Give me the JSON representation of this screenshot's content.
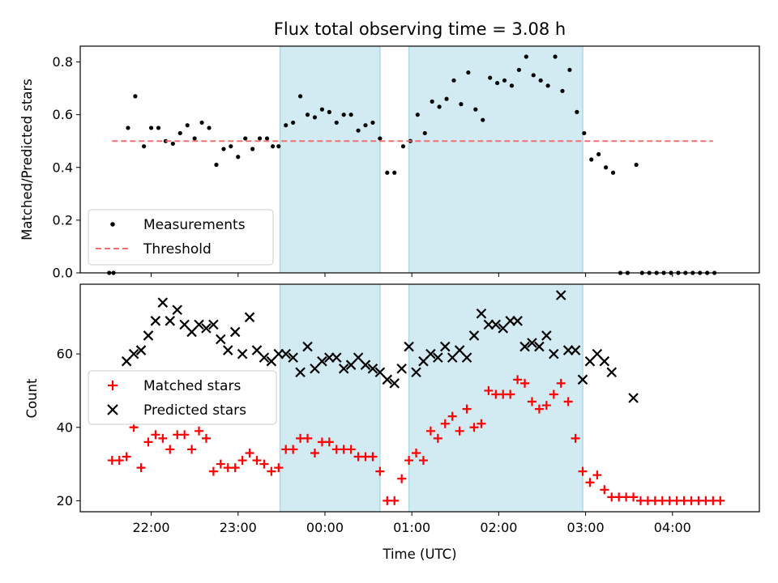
{
  "chart_data": [
    {
      "type": "scatter",
      "title": "Flux total observing time = 3.08 h",
      "xlabel": "",
      "ylabel": "Matched/Predicted stars",
      "ylim": [
        0,
        0.86
      ],
      "yticks": [
        "0.0",
        "0.2",
        "0.4",
        "0.6",
        "0.8"
      ],
      "ytick_values": [
        0,
        0.2,
        0.4,
        0.6,
        0.8
      ],
      "xlim": [
        "21:11",
        "05:00"
      ],
      "grid": false,
      "legend_position": "lower-left",
      "shaded_intervals": [
        [
          "23:29",
          "00:38"
        ],
        [
          "00:58",
          "02:58"
        ]
      ],
      "shade_color": "#add8e6",
      "series": [
        {
          "name": "Measurements",
          "marker": "dot",
          "color": "#000000",
          "points": [
            [
              "21:31",
              0.0
            ],
            [
              "21:34",
              0.0
            ],
            [
              "21:44",
              0.55
            ],
            [
              "21:49",
              0.67
            ],
            [
              "21:55",
              0.48
            ],
            [
              "22:00",
              0.55
            ],
            [
              "22:05",
              0.55
            ],
            [
              "22:10",
              0.5
            ],
            [
              "22:15",
              0.49
            ],
            [
              "22:20",
              0.53
            ],
            [
              "22:25",
              0.56
            ],
            [
              "22:30",
              0.51
            ],
            [
              "22:35",
              0.57
            ],
            [
              "22:40",
              0.55
            ],
            [
              "22:45",
              0.41
            ],
            [
              "22:50",
              0.47
            ],
            [
              "22:55",
              0.48
            ],
            [
              "23:00",
              0.44
            ],
            [
              "23:05",
              0.51
            ],
            [
              "23:10",
              0.47
            ],
            [
              "23:15",
              0.51
            ],
            [
              "23:20",
              0.51
            ],
            [
              "23:24",
              0.48
            ],
            [
              "23:28",
              0.48
            ],
            [
              "23:33",
              0.56
            ],
            [
              "23:38",
              0.57
            ],
            [
              "23:43",
              0.67
            ],
            [
              "23:48",
              0.6
            ],
            [
              "23:53",
              0.59
            ],
            [
              "23:58",
              0.62
            ],
            [
              "00:03",
              0.61
            ],
            [
              "00:08",
              0.57
            ],
            [
              "00:13",
              0.6
            ],
            [
              "00:18",
              0.6
            ],
            [
              "00:23",
              0.54
            ],
            [
              "00:28",
              0.56
            ],
            [
              "00:33",
              0.57
            ],
            [
              "00:38",
              0.51
            ],
            [
              "00:43",
              0.38
            ],
            [
              "00:48",
              0.38
            ],
            [
              "00:54",
              0.48
            ],
            [
              "00:59",
              0.5
            ],
            [
              "01:04",
              0.6
            ],
            [
              "01:09",
              0.53
            ],
            [
              "01:14",
              0.65
            ],
            [
              "01:19",
              0.63
            ],
            [
              "01:24",
              0.66
            ],
            [
              "01:29",
              0.73
            ],
            [
              "01:34",
              0.64
            ],
            [
              "01:39",
              0.76
            ],
            [
              "01:44",
              0.62
            ],
            [
              "01:49",
              0.58
            ],
            [
              "01:54",
              0.74
            ],
            [
              "01:59",
              0.72
            ],
            [
              "02:04",
              0.73
            ],
            [
              "02:09",
              0.71
            ],
            [
              "02:14",
              0.77
            ],
            [
              "02:19",
              0.82
            ],
            [
              "02:24",
              0.75
            ],
            [
              "02:29",
              0.73
            ],
            [
              "02:34",
              0.71
            ],
            [
              "02:39",
              0.82
            ],
            [
              "02:44",
              0.69
            ],
            [
              "02:49",
              0.77
            ],
            [
              "02:54",
              0.61
            ],
            [
              "02:59",
              0.53
            ],
            [
              "03:04",
              0.43
            ],
            [
              "03:09",
              0.45
            ],
            [
              "03:14",
              0.4
            ],
            [
              "03:19",
              0.38
            ],
            [
              "03:24",
              0.0
            ],
            [
              "03:29",
              0.0
            ],
            [
              "03:35",
              0.41
            ],
            [
              "03:39",
              0.0
            ],
            [
              "03:44",
              0.0
            ],
            [
              "03:49",
              0.0
            ],
            [
              "03:54",
              0.0
            ],
            [
              "03:59",
              0.0
            ],
            [
              "04:04",
              0.0
            ],
            [
              "04:09",
              0.0
            ],
            [
              "04:14",
              0.0
            ],
            [
              "04:19",
              0.0
            ],
            [
              "04:24",
              0.0
            ],
            [
              "04:29",
              0.0
            ]
          ]
        },
        {
          "name": "Threshold",
          "marker": "dashed-line",
          "color": "#f07070",
          "points": [
            [
              "21:33",
              0.5
            ],
            [
              "04:28",
              0.5
            ]
          ]
        }
      ]
    },
    {
      "type": "scatter",
      "title": "",
      "xlabel": "Time (UTC)",
      "ylabel": "Count",
      "ylim": [
        17,
        79
      ],
      "yticks": [
        "20",
        "40",
        "60"
      ],
      "ytick_values": [
        20,
        40,
        60
      ],
      "xticks": [
        "22:00",
        "23:00",
        "00:00",
        "01:00",
        "02:00",
        "03:00",
        "04:00"
      ],
      "xlim": [
        "21:11",
        "05:00"
      ],
      "grid": false,
      "legend_position": "center-left",
      "shaded_intervals": [
        [
          "23:29",
          "00:38"
        ],
        [
          "00:58",
          "02:58"
        ]
      ],
      "shade_color": "#add8e6",
      "series": [
        {
          "name": "Matched stars",
          "marker": "plus",
          "color": "#ff0000",
          "points": [
            [
              "21:33",
              31
            ],
            [
              "21:38",
              31
            ],
            [
              "21:43",
              32
            ],
            [
              "21:48",
              40
            ],
            [
              "21:53",
              29
            ],
            [
              "21:58",
              36
            ],
            [
              "22:03",
              38
            ],
            [
              "22:08",
              37
            ],
            [
              "22:13",
              34
            ],
            [
              "22:18",
              38
            ],
            [
              "22:23",
              38
            ],
            [
              "22:28",
              34
            ],
            [
              "22:33",
              39
            ],
            [
              "22:38",
              37
            ],
            [
              "22:43",
              28
            ],
            [
              "22:48",
              30
            ],
            [
              "22:53",
              29
            ],
            [
              "22:58",
              29
            ],
            [
              "23:03",
              31
            ],
            [
              "23:08",
              33
            ],
            [
              "23:13",
              31
            ],
            [
              "23:18",
              30
            ],
            [
              "23:23",
              28
            ],
            [
              "23:28",
              29
            ],
            [
              "23:33",
              34
            ],
            [
              "23:38",
              34
            ],
            [
              "23:43",
              37
            ],
            [
              "23:48",
              37
            ],
            [
              "23:53",
              33
            ],
            [
              "23:58",
              36
            ],
            [
              "00:03",
              36
            ],
            [
              "00:08",
              34
            ],
            [
              "00:13",
              34
            ],
            [
              "00:18",
              34
            ],
            [
              "00:23",
              32
            ],
            [
              "00:28",
              32
            ],
            [
              "00:33",
              32
            ],
            [
              "00:38",
              28
            ],
            [
              "00:43",
              20
            ],
            [
              "00:48",
              20
            ],
            [
              "00:53",
              26
            ],
            [
              "00:58",
              31
            ],
            [
              "01:03",
              33
            ],
            [
              "01:08",
              31
            ],
            [
              "01:13",
              39
            ],
            [
              "01:18",
              37
            ],
            [
              "01:23",
              41
            ],
            [
              "01:28",
              43
            ],
            [
              "01:33",
              39
            ],
            [
              "01:38",
              45
            ],
            [
              "01:43",
              40
            ],
            [
              "01:48",
              41
            ],
            [
              "01:53",
              50
            ],
            [
              "01:58",
              49
            ],
            [
              "02:03",
              49
            ],
            [
              "02:08",
              49
            ],
            [
              "02:13",
              53
            ],
            [
              "02:18",
              52
            ],
            [
              "02:23",
              47
            ],
            [
              "02:28",
              45
            ],
            [
              "02:33",
              46
            ],
            [
              "02:38",
              49
            ],
            [
              "02:43",
              52
            ],
            [
              "02:48",
              47
            ],
            [
              "02:53",
              37
            ],
            [
              "02:58",
              28
            ],
            [
              "03:03",
              25
            ],
            [
              "03:08",
              27
            ],
            [
              "03:13",
              23
            ],
            [
              "03:18",
              21
            ],
            [
              "03:23",
              21
            ],
            [
              "03:28",
              21
            ],
            [
              "03:33",
              21
            ],
            [
              "03:38",
              20
            ],
            [
              "03:43",
              20
            ],
            [
              "03:48",
              20
            ],
            [
              "03:53",
              20
            ],
            [
              "03:58",
              20
            ],
            [
              "04:03",
              20
            ],
            [
              "04:08",
              20
            ],
            [
              "04:13",
              20
            ],
            [
              "04:18",
              20
            ],
            [
              "04:23",
              20
            ],
            [
              "04:28",
              20
            ],
            [
              "04:33",
              20
            ]
          ]
        },
        {
          "name": "Predicted stars",
          "marker": "x",
          "color": "#000000",
          "points": [
            [
              "21:43",
              58
            ],
            [
              "21:48",
              60
            ],
            [
              "21:53",
              61
            ],
            [
              "21:58",
              65
            ],
            [
              "22:03",
              69
            ],
            [
              "22:08",
              74
            ],
            [
              "22:13",
              69
            ],
            [
              "22:18",
              72
            ],
            [
              "22:23",
              68
            ],
            [
              "22:28",
              66
            ],
            [
              "22:33",
              68
            ],
            [
              "22:38",
              67
            ],
            [
              "22:43",
              68
            ],
            [
              "22:48",
              64
            ],
            [
              "22:53",
              61
            ],
            [
              "22:58",
              66
            ],
            [
              "23:03",
              60
            ],
            [
              "23:08",
              70
            ],
            [
              "23:13",
              61
            ],
            [
              "23:18",
              59
            ],
            [
              "23:23",
              58
            ],
            [
              "23:28",
              60
            ],
            [
              "23:33",
              60
            ],
            [
              "23:38",
              59
            ],
            [
              "23:43",
              55
            ],
            [
              "23:48",
              62
            ],
            [
              "23:53",
              56
            ],
            [
              "23:58",
              58
            ],
            [
              "00:03",
              59
            ],
            [
              "00:08",
              59
            ],
            [
              "00:13",
              56
            ],
            [
              "00:18",
              57
            ],
            [
              "00:23",
              59
            ],
            [
              "00:28",
              57
            ],
            [
              "00:33",
              56
            ],
            [
              "00:38",
              55
            ],
            [
              "00:43",
              53
            ],
            [
              "00:48",
              52
            ],
            [
              "00:53",
              56
            ],
            [
              "00:58",
              62
            ],
            [
              "01:03",
              55
            ],
            [
              "01:08",
              58
            ],
            [
              "01:13",
              60
            ],
            [
              "01:18",
              59
            ],
            [
              "01:23",
              62
            ],
            [
              "01:28",
              59
            ],
            [
              "01:33",
              61
            ],
            [
              "01:38",
              59
            ],
            [
              "01:43",
              65
            ],
            [
              "01:48",
              71
            ],
            [
              "01:53",
              68
            ],
            [
              "01:58",
              68
            ],
            [
              "02:03",
              67
            ],
            [
              "02:08",
              69
            ],
            [
              "02:13",
              69
            ],
            [
              "02:18",
              62
            ],
            [
              "02:23",
              63
            ],
            [
              "02:28",
              62
            ],
            [
              "02:33",
              65
            ],
            [
              "02:38",
              60
            ],
            [
              "02:43",
              76
            ],
            [
              "02:48",
              61
            ],
            [
              "02:53",
              61
            ],
            [
              "02:58",
              53
            ],
            [
              "03:03",
              58
            ],
            [
              "03:08",
              60
            ],
            [
              "03:13",
              58
            ],
            [
              "03:18",
              55
            ],
            [
              "03:33",
              48
            ]
          ]
        }
      ]
    }
  ]
}
